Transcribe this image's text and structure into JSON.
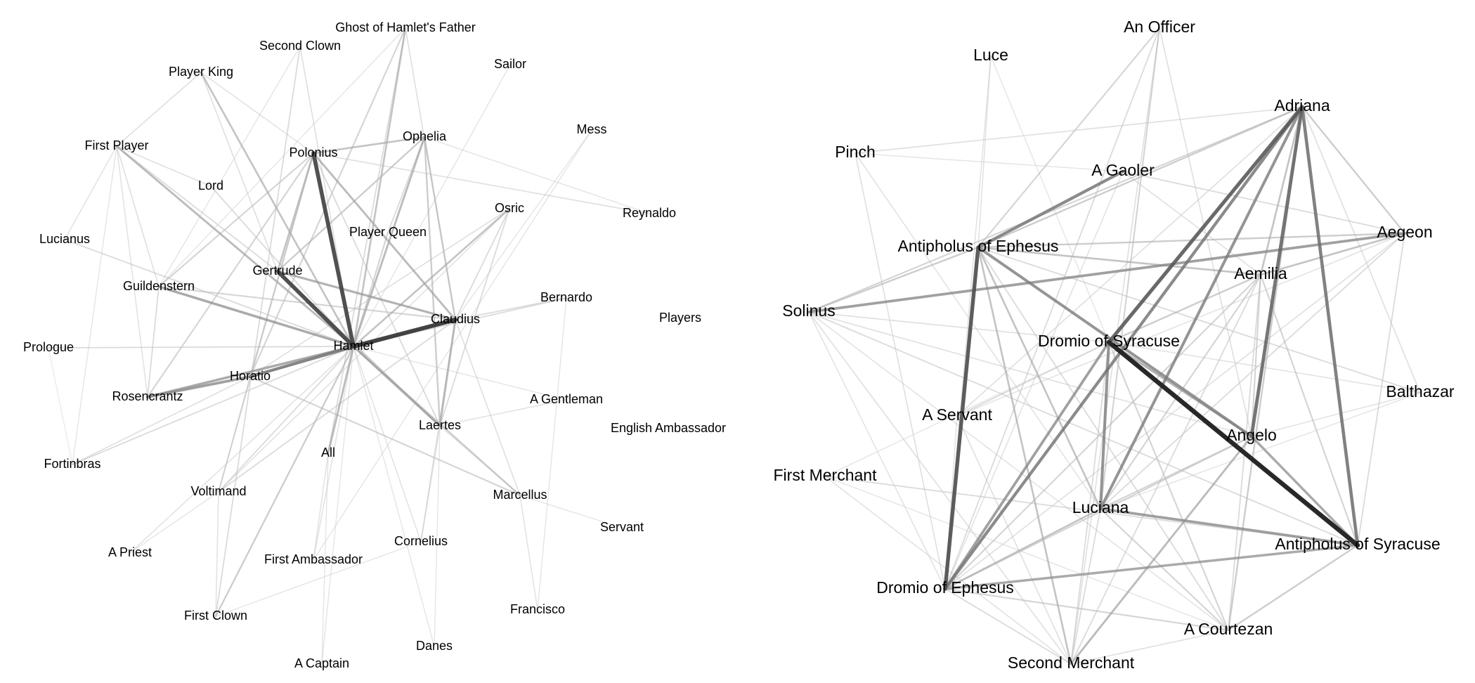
{
  "networks": [
    {
      "id": "hamlet",
      "nodes": [
        "Ghost of Hamlet's Father",
        "Second Clown",
        "Sailor",
        "Player King",
        "Mess",
        "First Player",
        "Polonius",
        "Ophelia",
        "Lord",
        "Osric",
        "Reynaldo",
        "Player Queen",
        "Lucianus",
        "Gertrude",
        "Guildenstern",
        "Bernardo",
        "Claudius",
        "Players",
        "Hamlet",
        "Prologue",
        "Horatio",
        "Rosencrantz",
        "A Gentleman",
        "Laertes",
        "English Ambassador",
        "Fortinbras",
        "All",
        "Voltimand",
        "Marcellus",
        "Servant",
        "Cornelius",
        "A Priest",
        "First Ambassador",
        "Francisco",
        "First Clown",
        "Danes",
        "A Captain"
      ],
      "edges": [
        {
          "s": "Hamlet",
          "t": "Claudius",
          "w": 0.9
        },
        {
          "s": "Hamlet",
          "t": "Polonius",
          "w": 0.85
        },
        {
          "s": "Hamlet",
          "t": "Gertrude",
          "w": 0.85
        },
        {
          "s": "Hamlet",
          "t": "Horatio",
          "w": 0.6
        },
        {
          "s": "Hamlet",
          "t": "Guildenstern",
          "w": 0.45
        },
        {
          "s": "Hamlet",
          "t": "Rosencrantz",
          "w": 0.45
        },
        {
          "s": "Hamlet",
          "t": "Laertes",
          "w": 0.4
        },
        {
          "s": "Hamlet",
          "t": "Ophelia",
          "w": 0.35
        },
        {
          "s": "Hamlet",
          "t": "First Player",
          "w": 0.35
        },
        {
          "s": "Hamlet",
          "t": "All",
          "w": 0.35
        },
        {
          "s": "Hamlet",
          "t": "Ghost of Hamlet's Father",
          "w": 0.3
        },
        {
          "s": "Hamlet",
          "t": "Player King",
          "w": 0.3
        },
        {
          "s": "Hamlet",
          "t": "Osric",
          "w": 0.3
        },
        {
          "s": "Hamlet",
          "t": "First Clown",
          "w": 0.25
        },
        {
          "s": "Hamlet",
          "t": "Marcellus",
          "w": 0.25
        },
        {
          "s": "Hamlet",
          "t": "Player Queen",
          "w": 0.2
        },
        {
          "s": "Hamlet",
          "t": "Prologue",
          "w": 0.15
        },
        {
          "s": "Hamlet",
          "t": "Fortinbras",
          "w": 0.15
        },
        {
          "s": "Hamlet",
          "t": "Lord",
          "w": 0.15
        },
        {
          "s": "Hamlet",
          "t": "Voltimand",
          "w": 0.15
        },
        {
          "s": "Hamlet",
          "t": "Lucianus",
          "w": 0.15
        },
        {
          "s": "Hamlet",
          "t": "Bernardo",
          "w": 0.15
        },
        {
          "s": "Hamlet",
          "t": "First Ambassador",
          "w": 0.1
        },
        {
          "s": "Hamlet",
          "t": "Cornelius",
          "w": 0.1
        },
        {
          "s": "Hamlet",
          "t": "A Priest",
          "w": 0.1
        },
        {
          "s": "Hamlet",
          "t": "Second Clown",
          "w": 0.12
        },
        {
          "s": "Hamlet",
          "t": "Sailor",
          "w": 0.08
        },
        {
          "s": "Hamlet",
          "t": "A Gentleman",
          "w": 0.08
        },
        {
          "s": "Hamlet",
          "t": "A Captain",
          "w": 0.08
        },
        {
          "s": "Hamlet",
          "t": "Danes",
          "w": 0.08
        },
        {
          "s": "Gertrude",
          "t": "Claudius",
          "w": 0.4
        },
        {
          "s": "Gertrude",
          "t": "Polonius",
          "w": 0.3
        },
        {
          "s": "Gertrude",
          "t": "Ophelia",
          "w": 0.25
        },
        {
          "s": "Gertrude",
          "t": "Laertes",
          "w": 0.25
        },
        {
          "s": "Gertrude",
          "t": "First Player",
          "w": 0.15
        },
        {
          "s": "Claudius",
          "t": "Polonius",
          "w": 0.35
        },
        {
          "s": "Claudius",
          "t": "Laertes",
          "w": 0.35
        },
        {
          "s": "Claudius",
          "t": "Horatio",
          "w": 0.25
        },
        {
          "s": "Claudius",
          "t": "Ophelia",
          "w": 0.25
        },
        {
          "s": "Claudius",
          "t": "Guildenstern",
          "w": 0.2
        },
        {
          "s": "Claudius",
          "t": "Osric",
          "w": 0.15
        },
        {
          "s": "Claudius",
          "t": "Voltimand",
          "w": 0.15
        },
        {
          "s": "Claudius",
          "t": "Bernardo",
          "w": 0.15
        },
        {
          "s": "Claudius",
          "t": "Mess",
          "w": 0.08
        },
        {
          "s": "Claudius",
          "t": "Marcellus",
          "w": 0.12
        },
        {
          "s": "Claudius",
          "t": "Cornelius",
          "w": 0.12
        },
        {
          "s": "Claudius",
          "t": "Ghost of Hamlet's Father",
          "w": 0.12
        },
        {
          "s": "Polonius",
          "t": "Ophelia",
          "w": 0.3
        },
        {
          "s": "Polonius",
          "t": "Horatio",
          "w": 0.2
        },
        {
          "s": "Polonius",
          "t": "Guildenstern",
          "w": 0.2
        },
        {
          "s": "Polonius",
          "t": "Rosencrantz",
          "w": 0.2
        },
        {
          "s": "Polonius",
          "t": "Voltimand",
          "w": 0.15
        },
        {
          "s": "Polonius",
          "t": "Reynaldo",
          "w": 0.12
        },
        {
          "s": "Polonius",
          "t": "Laertes",
          "w": 0.15
        },
        {
          "s": "Horatio",
          "t": "Rosencrantz",
          "w": 0.5
        },
        {
          "s": "Horatio",
          "t": "Marcellus",
          "w": 0.2
        },
        {
          "s": "Horatio",
          "t": "Ghost of Hamlet's Father",
          "w": 0.2
        },
        {
          "s": "Horatio",
          "t": "Voltimand",
          "w": 0.15
        },
        {
          "s": "Horatio",
          "t": "Fortinbras",
          "w": 0.12
        },
        {
          "s": "Horatio",
          "t": "Osric",
          "w": 0.12
        },
        {
          "s": "Ophelia",
          "t": "Laertes",
          "w": 0.25
        },
        {
          "s": "Ophelia",
          "t": "Player Queen",
          "w": 0.15
        },
        {
          "s": "First Player",
          "t": "Lord",
          "w": 0.12
        },
        {
          "s": "First Player",
          "t": "Player King",
          "w": 0.12
        },
        {
          "s": "First Player",
          "t": "Guildenstern",
          "w": 0.12
        },
        {
          "s": "First Player",
          "t": "Rosencrantz",
          "w": 0.1
        },
        {
          "s": "First Player",
          "t": "Lucianus",
          "w": 0.1
        },
        {
          "s": "Player King",
          "t": "Polonius",
          "w": 0.1
        },
        {
          "s": "Player King",
          "t": "Gertrude",
          "w": 0.12
        },
        {
          "s": "Second Clown",
          "t": "First Clown",
          "w": 0.15
        },
        {
          "s": "Second Clown",
          "t": "Guildenstern",
          "w": 0.08
        },
        {
          "s": "Ghost of Hamlet's Father",
          "t": "All",
          "w": 0.15
        },
        {
          "s": "Ghost of Hamlet's Father",
          "t": "Guildenstern",
          "w": 0.08
        },
        {
          "s": "Guildenstern",
          "t": "Rosencrantz",
          "w": 0.15
        },
        {
          "s": "Laertes",
          "t": "Osric",
          "w": 0.15
        },
        {
          "s": "Laertes",
          "t": "Marcellus",
          "w": 0.12
        },
        {
          "s": "Laertes",
          "t": "Cornelius",
          "w": 0.12
        },
        {
          "s": "Laertes",
          "t": "Danes",
          "w": 0.08
        },
        {
          "s": "Laertes",
          "t": "A Gentleman",
          "w": 0.1
        },
        {
          "s": "Osric",
          "t": "Voltimand",
          "w": 0.1
        },
        {
          "s": "All",
          "t": "First Ambassador",
          "w": 0.1
        },
        {
          "s": "All",
          "t": "A Captain",
          "w": 0.08
        },
        {
          "s": "Voltimand",
          "t": "First Clown",
          "w": 0.1
        },
        {
          "s": "Voltimand",
          "t": "A Priest",
          "w": 0.08
        },
        {
          "s": "Marcellus",
          "t": "Francisco",
          "w": 0.1
        },
        {
          "s": "Marcellus",
          "t": "Servant",
          "w": 0.08
        },
        {
          "s": "Bernardo",
          "t": "Francisco",
          "w": 0.08
        },
        {
          "s": "Mess",
          "t": "First Ambassador",
          "w": 0.08
        },
        {
          "s": "Reynaldo",
          "t": "Ophelia",
          "w": 0.08
        },
        {
          "s": "Prologue",
          "t": "Fortinbras",
          "w": 0.05
        },
        {
          "s": "First Clown",
          "t": "Cornelius",
          "w": 0.08
        },
        {
          "s": "Fortinbras",
          "t": "First Player",
          "w": 0.08
        }
      ]
    },
    {
      "id": "comedy-of-errors",
      "nodes": [
        "An Officer",
        "Luce",
        "Adriana",
        "Pinch",
        "A Gaoler",
        "Aegeon",
        "Antipholus of Ephesus",
        "Aemilia",
        "Solinus",
        "Dromio of Syracuse",
        "Balthazar",
        "A Servant",
        "Angelo",
        "First Merchant",
        "Luciana",
        "Antipholus of Syracuse",
        "Dromio of Ephesus",
        "A Courtezan",
        "Second Merchant"
      ],
      "edges": [
        {
          "s": "Dromio of Syracuse",
          "t": "Antipholus of Syracuse",
          "w": 1.0
        },
        {
          "s": "Adriana",
          "t": "Dromio of Syracuse",
          "w": 0.75
        },
        {
          "s": "Adriana",
          "t": "Angelo",
          "w": 0.7
        },
        {
          "s": "Adriana",
          "t": "Antipholus of Syracuse",
          "w": 0.65
        },
        {
          "s": "Adriana",
          "t": "Dromio of Ephesus",
          "w": 0.6
        },
        {
          "s": "Adriana",
          "t": "Luciana",
          "w": 0.55
        },
        {
          "s": "Adriana",
          "t": "Aemilia",
          "w": 0.3
        },
        {
          "s": "Adriana",
          "t": "Aegeon",
          "w": 0.25
        },
        {
          "s": "Adriana",
          "t": "Antipholus of Ephesus",
          "w": 0.25
        },
        {
          "s": "Adriana",
          "t": "A Courtezan",
          "w": 0.25
        },
        {
          "s": "Adriana",
          "t": "Solinus",
          "w": 0.2
        },
        {
          "s": "Adriana",
          "t": "Pinch",
          "w": 0.12
        },
        {
          "s": "Adriana",
          "t": "Balthazar",
          "w": 0.12
        },
        {
          "s": "Adriana",
          "t": "A Servant",
          "w": 0.12
        },
        {
          "s": "Antipholus of Ephesus",
          "t": "Dromio of Ephesus",
          "w": 0.8
        },
        {
          "s": "Antipholus of Ephesus",
          "t": "A Gaoler",
          "w": 0.6
        },
        {
          "s": "Antipholus of Ephesus",
          "t": "Angelo",
          "w": 0.55
        },
        {
          "s": "Antipholus of Ephesus",
          "t": "Aemilia",
          "w": 0.3
        },
        {
          "s": "Antipholus of Ephesus",
          "t": "Luciana",
          "w": 0.3
        },
        {
          "s": "Antipholus of Ephesus",
          "t": "Second Merchant",
          "w": 0.3
        },
        {
          "s": "Antipholus of Ephesus",
          "t": "Aegeon",
          "w": 0.25
        },
        {
          "s": "Antipholus of Ephesus",
          "t": "Solinus",
          "w": 0.25
        },
        {
          "s": "Antipholus of Ephesus",
          "t": "Balthazar",
          "w": 0.15
        },
        {
          "s": "Antipholus of Ephesus",
          "t": "A Courtezan",
          "w": 0.15
        },
        {
          "s": "Antipholus of Ephesus",
          "t": "An Officer",
          "w": 0.2
        },
        {
          "s": "Antipholus of Ephesus",
          "t": "Luce",
          "w": 0.1
        },
        {
          "s": "Solinus",
          "t": "Aegeon",
          "w": 0.5
        },
        {
          "s": "Solinus",
          "t": "Antipholus of Syracuse",
          "w": 0.15
        },
        {
          "s": "Solinus",
          "t": "Dromio of Syracuse",
          "w": 0.12
        },
        {
          "s": "Solinus",
          "t": "Second Merchant",
          "w": 0.12
        },
        {
          "s": "Solinus",
          "t": "Angelo",
          "w": 0.12
        },
        {
          "s": "Solinus",
          "t": "A Courtezan",
          "w": 0.1
        },
        {
          "s": "Solinus",
          "t": "Dromio of Ephesus",
          "w": 0.1
        },
        {
          "s": "Dromio of Syracuse",
          "t": "Luciana",
          "w": 0.55
        },
        {
          "s": "Dromio of Syracuse",
          "t": "Dromio of Ephesus",
          "w": 0.5
        },
        {
          "s": "Dromio of Syracuse",
          "t": "Angelo",
          "w": 0.4
        },
        {
          "s": "Dromio of Syracuse",
          "t": "Aemilia",
          "w": 0.25
        },
        {
          "s": "Dromio of Syracuse",
          "t": "A Courtezan",
          "w": 0.2
        },
        {
          "s": "Dromio of Syracuse",
          "t": "Second Merchant",
          "w": 0.15
        },
        {
          "s": "Dromio of Syracuse",
          "t": "A Servant",
          "w": 0.15
        },
        {
          "s": "Antipholus of Syracuse",
          "t": "Luciana",
          "w": 0.5
        },
        {
          "s": "Antipholus of Syracuse",
          "t": "Dromio of Ephesus",
          "w": 0.45
        },
        {
          "s": "Antipholus of Syracuse",
          "t": "Angelo",
          "w": 0.45
        },
        {
          "s": "Antipholus of Syracuse",
          "t": "A Courtezan",
          "w": 0.25
        },
        {
          "s": "Antipholus of Syracuse",
          "t": "Aemilia",
          "w": 0.2
        },
        {
          "s": "Antipholus of Syracuse",
          "t": "First Merchant",
          "w": 0.15
        },
        {
          "s": "Antipholus of Syracuse",
          "t": "Aegeon",
          "w": 0.15
        },
        {
          "s": "Angelo",
          "t": "Second Merchant",
          "w": 0.35
        },
        {
          "s": "Angelo",
          "t": "Aemilia",
          "w": 0.2
        },
        {
          "s": "Angelo",
          "t": "Luciana",
          "w": 0.2
        },
        {
          "s": "Angelo",
          "t": "Dromio of Ephesus",
          "w": 0.2
        },
        {
          "s": "Aemilia",
          "t": "Aegeon",
          "w": 0.3
        },
        {
          "s": "Aemilia",
          "t": "Luciana",
          "w": 0.2
        },
        {
          "s": "Aemilia",
          "t": "Dromio of Ephesus",
          "w": 0.2
        },
        {
          "s": "Aemilia",
          "t": "A Courtezan",
          "w": 0.15
        },
        {
          "s": "Aemilia",
          "t": "Second Merchant",
          "w": 0.15
        },
        {
          "s": "Luciana",
          "t": "Dromio of Ephesus",
          "w": 0.3
        },
        {
          "s": "Luciana",
          "t": "A Courtezan",
          "w": 0.2
        },
        {
          "s": "Luciana",
          "t": "Second Merchant",
          "w": 0.15
        },
        {
          "s": "Dromio of Ephesus",
          "t": "A Courtezan",
          "w": 0.2
        },
        {
          "s": "Dromio of Ephesus",
          "t": "Second Merchant",
          "w": 0.15
        },
        {
          "s": "Dromio of Ephesus",
          "t": "Pinch",
          "w": 0.12
        },
        {
          "s": "Dromio of Ephesus",
          "t": "A Gaoler",
          "w": 0.1
        },
        {
          "s": "An Officer",
          "t": "Luciana",
          "w": 0.2
        },
        {
          "s": "An Officer",
          "t": "Dromio of Ephesus",
          "w": 0.15
        },
        {
          "s": "An Officer",
          "t": "Angelo",
          "w": 0.12
        },
        {
          "s": "An Officer",
          "t": "Second Merchant",
          "w": 0.12
        },
        {
          "s": "Luce",
          "t": "Dromio of Ephesus",
          "w": 0.1
        },
        {
          "s": "Luce",
          "t": "Dromio of Syracuse",
          "w": 0.08
        },
        {
          "s": "Pinch",
          "t": "Luciana",
          "w": 0.1
        },
        {
          "s": "Pinch",
          "t": "A Gaoler",
          "w": 0.08
        },
        {
          "s": "A Gaoler",
          "t": "Aegeon",
          "w": 0.15
        },
        {
          "s": "A Gaoler",
          "t": "Aemilia",
          "w": 0.12
        },
        {
          "s": "Aegeon",
          "t": "Luciana",
          "w": 0.15
        },
        {
          "s": "Aegeon",
          "t": "Dromio of Ephesus",
          "w": 0.12
        },
        {
          "s": "Aegeon",
          "t": "A Servant",
          "w": 0.1
        },
        {
          "s": "Balthazar",
          "t": "Dromio of Syracuse",
          "w": 0.1
        },
        {
          "s": "Balthazar",
          "t": "Luciana",
          "w": 0.08
        },
        {
          "s": "Balthazar",
          "t": "Angelo",
          "w": 0.1
        },
        {
          "s": "A Servant",
          "t": "Second Merchant",
          "w": 0.12
        },
        {
          "s": "A Servant",
          "t": "Dromio of Ephesus",
          "w": 0.1
        },
        {
          "s": "First Merchant",
          "t": "Second Merchant",
          "w": 0.1
        },
        {
          "s": "First Merchant",
          "t": "Dromio of Syracuse",
          "w": 0.08
        },
        {
          "s": "First Merchant",
          "t": "A Courtezan",
          "w": 0.08
        },
        {
          "s": "A Courtezan",
          "t": "Second Merchant",
          "w": 0.12
        }
      ]
    }
  ]
}
